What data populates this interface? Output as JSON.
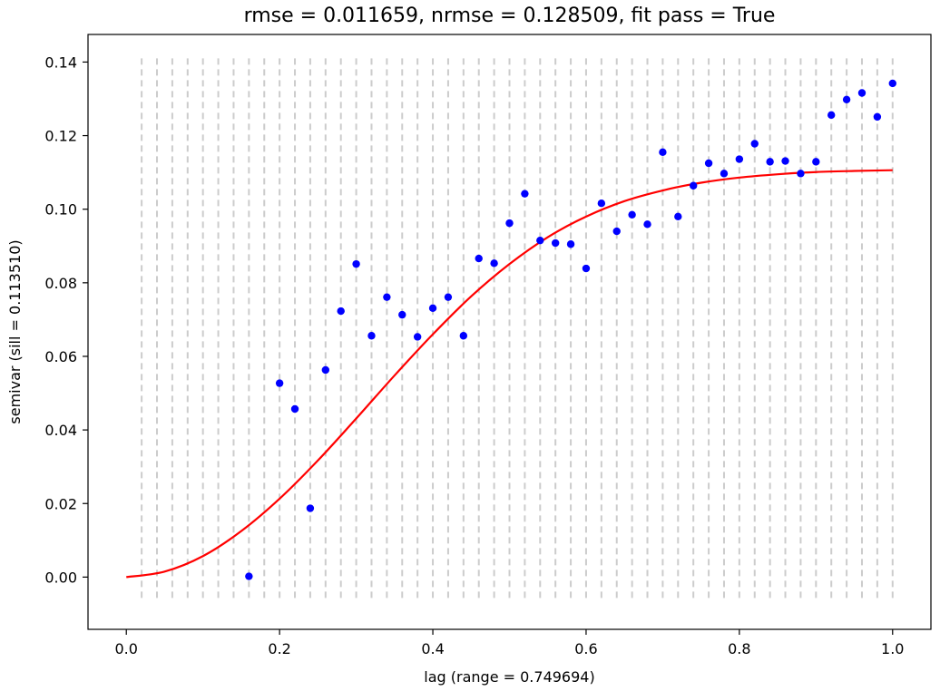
{
  "chart_data": {
    "type": "scatter",
    "title": "rmse = 0.011659, nrmse = 0.128509, fit pass = True",
    "xlabel": "lag (range = 0.749694)",
    "ylabel": "semivar (sill = 0.113510)",
    "xlim": [
      -0.05,
      1.05
    ],
    "ylim": [
      -0.0142,
      0.1475
    ],
    "xticks": [
      0.0,
      0.2,
      0.4,
      0.6,
      0.8,
      1.0
    ],
    "xtick_labels": [
      "0.0",
      "0.2",
      "0.4",
      "0.6",
      "0.8",
      "1.0"
    ],
    "yticks": [
      0.0,
      0.02,
      0.04,
      0.06,
      0.08,
      0.1,
      0.12,
      0.14
    ],
    "ytick_labels": [
      "0.00",
      "0.02",
      "0.04",
      "0.06",
      "0.08",
      "0.10",
      "0.12",
      "0.14"
    ],
    "grid": false,
    "legend": "none",
    "bin_edges": {
      "x": [
        0.02,
        0.04,
        0.06,
        0.08,
        0.1,
        0.12,
        0.14,
        0.16,
        0.18,
        0.2,
        0.22,
        0.24,
        0.26,
        0.28,
        0.3,
        0.32,
        0.34,
        0.36,
        0.38,
        0.4,
        0.42,
        0.44,
        0.46,
        0.48,
        0.5,
        0.52,
        0.54,
        0.56,
        0.58,
        0.6,
        0.62,
        0.64,
        0.66,
        0.68,
        0.7,
        0.72,
        0.74,
        0.76,
        0.78,
        0.8,
        0.82,
        0.84,
        0.86,
        0.88,
        0.9,
        0.92,
        0.94,
        0.96,
        0.98,
        1.0
      ],
      "y_range": [
        -0.0068,
        0.141
      ],
      "color": "#cccccc",
      "style": "dashed"
    },
    "series": [
      {
        "kind": "scatter",
        "color": "#0000ff",
        "x": [
          0.16,
          0.2,
          0.22,
          0.24,
          0.26,
          0.28,
          0.3,
          0.32,
          0.34,
          0.36,
          0.38,
          0.4,
          0.42,
          0.44,
          0.46,
          0.48,
          0.5,
          0.52,
          0.54,
          0.56,
          0.58,
          0.6,
          0.62,
          0.64,
          0.66,
          0.68,
          0.7,
          0.72,
          0.74,
          0.76,
          0.78,
          0.8,
          0.82,
          0.84,
          0.86,
          0.88,
          0.9,
          0.92,
          0.94,
          0.96,
          0.98,
          1.0
        ],
        "y": [
          0.0002,
          0.0527,
          0.0457,
          0.0187,
          0.0563,
          0.0723,
          0.0851,
          0.0656,
          0.0761,
          0.0713,
          0.0653,
          0.0731,
          0.0761,
          0.0656,
          0.0866,
          0.0853,
          0.0962,
          0.1042,
          0.0915,
          0.0908,
          0.0905,
          0.0839,
          0.1016,
          0.094,
          0.0985,
          0.0959,
          0.1155,
          0.098,
          0.1064,
          0.1125,
          0.1097,
          0.1136,
          0.1178,
          0.1129,
          0.1131,
          0.1097,
          0.1129,
          0.1256,
          0.1298,
          0.1316,
          0.1251,
          0.1342
        ]
      },
      {
        "kind": "line",
        "color": "#ff0000",
        "model": "gaussian",
        "range": 0.749694,
        "sill": 0.11351,
        "x": [
          0.0,
          0.05,
          0.1,
          0.15,
          0.2,
          0.25,
          0.3,
          0.35,
          0.4,
          0.45,
          0.5,
          0.55,
          0.6,
          0.65,
          0.7,
          0.75,
          0.8,
          0.85,
          0.9,
          0.95,
          1.0
        ],
        "y": [
          0.0,
          0.0015,
          0.0057,
          0.0125,
          0.0213,
          0.0317,
          0.0431,
          0.0548,
          0.066,
          0.0763,
          0.0851,
          0.0924,
          0.098,
          0.1022,
          0.1051,
          0.1072,
          0.1086,
          0.1095,
          0.1101,
          0.1104,
          0.1106
        ]
      }
    ]
  }
}
